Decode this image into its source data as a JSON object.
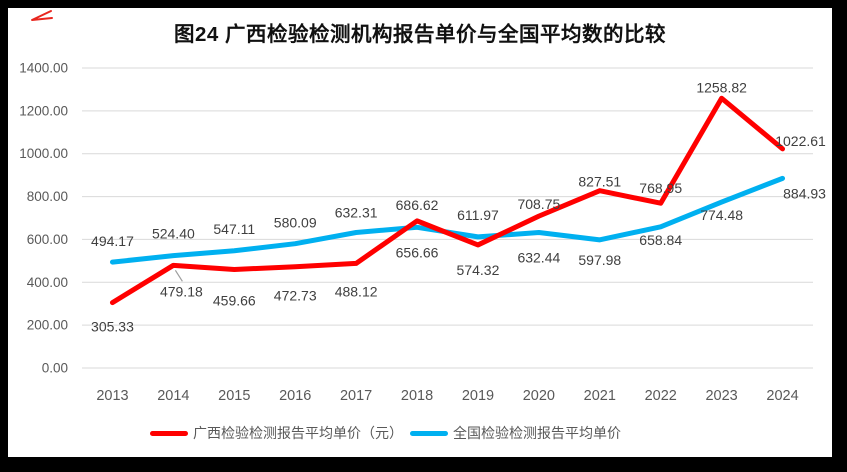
{
  "figure": {
    "title": "图24  广西检验检测机构报告单价与全国平均数的比较"
  },
  "chart_data": {
    "type": "line",
    "title": "图24  广西检验检测机构报告单价与全国平均数的比较",
    "categories": [
      "2013",
      "2014",
      "2015",
      "2016",
      "2017",
      "2018",
      "2019",
      "2020",
      "2021",
      "2022",
      "2023",
      "2024"
    ],
    "series": [
      {
        "name": "广西检验检测报告平均单价（元）",
        "color": "#FF0000",
        "values": [
          305.33,
          479.18,
          459.66,
          472.73,
          488.12,
          686.62,
          574.32,
          708.75,
          827.51,
          768.95,
          1258.82,
          1022.61
        ]
      },
      {
        "name": "全国检验检测报告平均单价",
        "color": "#00B0F0",
        "values": [
          494.17,
          524.4,
          547.11,
          580.09,
          632.31,
          656.66,
          611.97,
          632.44,
          597.98,
          658.84,
          774.48,
          884.93
        ]
      }
    ],
    "ylim": [
      0,
      1400
    ],
    "ytick_step": 200,
    "ytick_labels": [
      "0.00",
      "200.00",
      "400.00",
      "600.00",
      "800.00",
      "1000.00",
      "1200.00",
      "1400.00"
    ],
    "grid": true,
    "data_labels": true,
    "label_decimals": 2,
    "legend_position": "bottom",
    "xlabel": "",
    "ylabel": ""
  }
}
